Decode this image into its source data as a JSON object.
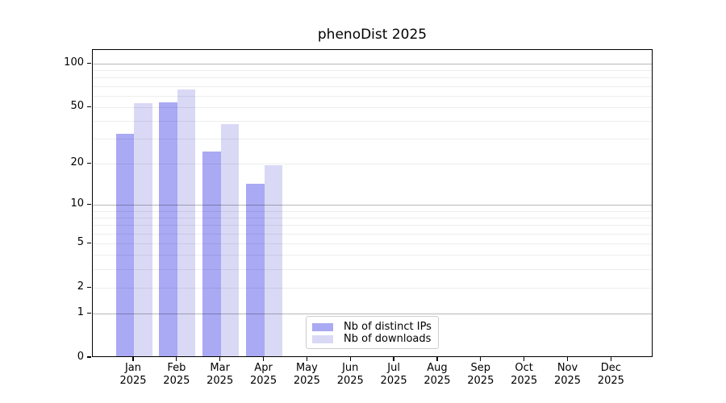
{
  "chart_data": {
    "type": "bar",
    "title": "phenoDist 2025",
    "categories": [
      "Jan",
      "Feb",
      "Mar",
      "Apr",
      "May",
      "Jun",
      "Jul",
      "Aug",
      "Sep",
      "Oct",
      "Nov",
      "Dec"
    ],
    "category_year": "2025",
    "series": [
      {
        "name": "Nb of distinct IPs",
        "color": "#a9a9f4",
        "values": [
          32,
          53,
          24,
          14,
          null,
          null,
          null,
          null,
          null,
          null,
          null,
          null
        ]
      },
      {
        "name": "Nb of downloads",
        "color": "#d9d9f6",
        "values": [
          52,
          65,
          37,
          19,
          null,
          null,
          null,
          null,
          null,
          null,
          null,
          null
        ]
      }
    ],
    "xlabel": "",
    "ylabel": "",
    "yscale": "log1p",
    "ylim": [
      0,
      122
    ],
    "yticks": [
      0,
      1,
      2,
      5,
      10,
      20,
      50,
      100
    ],
    "minor_gridlines": [
      2,
      3,
      4,
      5,
      6,
      7,
      8,
      9,
      20,
      30,
      40,
      50,
      60,
      70,
      80,
      90
    ],
    "major_gridlines": [
      1,
      10,
      100
    ],
    "grid": true,
    "legend_position": "lower center"
  }
}
